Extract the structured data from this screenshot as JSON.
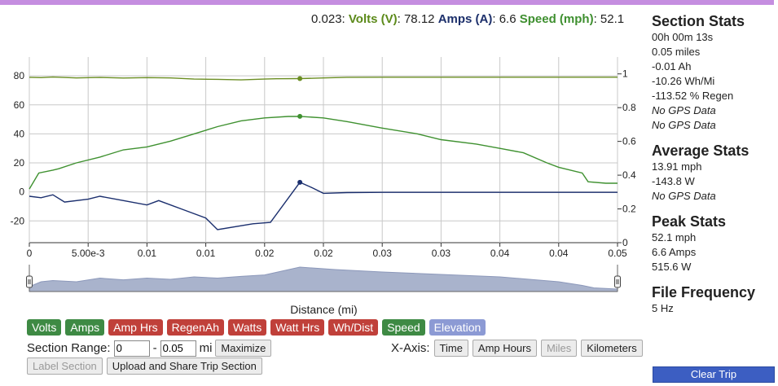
{
  "readout": {
    "x_value": "0.023:",
    "volts_label": "Volts (V)",
    "volts_sep": ":",
    "volts_value": "78.12",
    "amps_label": "Amps (A)",
    "amps_sep": ":",
    "amps_value": "6.6",
    "speed_label": "Speed (mph)",
    "speed_sep": ":",
    "speed_value": "52.1"
  },
  "colors": {
    "volts": "#6b8e23",
    "speed": "#3f9130",
    "amps": "#1b2f6e",
    "elevation": "#8c98ba"
  },
  "chart_data": {
    "type": "line",
    "xlabel": "Distance (mi)",
    "x_tick_labels": [
      "0",
      "5.00e-3",
      "0.01",
      "0.01",
      "0.02",
      "0.02",
      "0.03",
      "0.03",
      "0.04",
      "0.04",
      "0.05",
      "0.05"
    ],
    "xlim": [
      0,
      0.05
    ],
    "y_left_ticks": [
      "80",
      "60",
      "40",
      "20",
      "0",
      "-20"
    ],
    "ylim_left": [
      -35,
      93
    ],
    "y_right_ticks": [
      "1",
      "0.8",
      "0.6",
      "0.4",
      "0.2",
      "0"
    ],
    "ylim_right": [
      0,
      1.1
    ],
    "grid": true,
    "highlight_x": 0.023,
    "series": [
      {
        "name": "Volts (V)",
        "axis": "left",
        "x": [
          0,
          0.001,
          0.002,
          0.004,
          0.006,
          0.008,
          0.01,
          0.012,
          0.014,
          0.016,
          0.018,
          0.02,
          0.021,
          0.023,
          0.025,
          0.027,
          0.03,
          0.035,
          0.04,
          0.045,
          0.05
        ],
        "y": [
          79.0,
          78.8,
          79.2,
          78.6,
          78.9,
          78.5,
          78.8,
          78.6,
          77.8,
          77.6,
          77.2,
          77.8,
          78.0,
          78.12,
          78.6,
          79.0,
          79.1,
          79.1,
          79.1,
          79.1,
          79.1
        ]
      },
      {
        "name": "Speed (mph)",
        "axis": "left",
        "x": [
          0,
          0.0008,
          0.002,
          0.0025,
          0.004,
          0.006,
          0.008,
          0.01,
          0.012,
          0.014,
          0.016,
          0.018,
          0.02,
          0.022,
          0.023,
          0.025,
          0.027,
          0.03,
          0.033,
          0.035,
          0.038,
          0.04,
          0.042,
          0.044,
          0.045,
          0.047,
          0.0475,
          0.049,
          0.05
        ],
        "y": [
          2,
          13,
          15,
          16,
          20,
          24,
          29,
          31,
          35,
          40,
          45,
          49,
          51,
          52,
          52.1,
          51,
          48.5,
          44,
          40,
          36,
          33,
          30,
          27,
          20,
          17,
          13,
          7,
          6,
          6
        ]
      },
      {
        "name": "Amps (A)",
        "axis": "left",
        "x": [
          0,
          0.001,
          0.002,
          0.003,
          0.005,
          0.006,
          0.008,
          0.01,
          0.011,
          0.013,
          0.015,
          0.016,
          0.019,
          0.0205,
          0.023,
          0.024,
          0.025,
          0.027,
          0.03,
          0.035,
          0.04,
          0.045,
          0.05
        ],
        "y": [
          -3,
          -4,
          -2,
          -7,
          -5,
          -3,
          -6,
          -9,
          -6,
          -12,
          -18,
          -26,
          -22,
          -21,
          6.6,
          3,
          -1,
          -0.5,
          -0.3,
          -0.3,
          -0.3,
          -0.3,
          -0.3
        ]
      }
    ]
  },
  "elevation": {
    "name": "Elevation",
    "x": [
      0,
      0.001,
      0.002,
      0.004,
      0.006,
      0.008,
      0.01,
      0.012,
      0.014,
      0.016,
      0.018,
      0.02,
      0.023,
      0.026,
      0.03,
      0.035,
      0.04,
      0.045,
      0.047,
      0.048,
      0.05
    ],
    "y": [
      0.2,
      0.4,
      0.45,
      0.4,
      0.55,
      0.48,
      0.55,
      0.5,
      0.6,
      0.55,
      0.62,
      0.68,
      1.0,
      0.9,
      0.8,
      0.7,
      0.6,
      0.4,
      0.25,
      0.15,
      0.1
    ]
  },
  "series_buttons": [
    {
      "label": "Volts",
      "style": "green"
    },
    {
      "label": "Amps",
      "style": "green"
    },
    {
      "label": "Amp Hrs",
      "style": "red"
    },
    {
      "label": "RegenAh",
      "style": "red"
    },
    {
      "label": "Watts",
      "style": "red"
    },
    {
      "label": "Watt Hrs",
      "style": "red"
    },
    {
      "label": "Wh/Dist",
      "style": "red"
    },
    {
      "label": "Speed",
      "style": "green"
    },
    {
      "label": "Elevation",
      "style": "blue"
    }
  ],
  "section_range": {
    "label": "Section Range:",
    "start": "0",
    "separator": "-",
    "end": "0.05",
    "unit": "mi",
    "maximize_label": "Maximize"
  },
  "xaxis_controls": {
    "label": "X-Axis:",
    "buttons": [
      {
        "label": "Time",
        "enabled": true
      },
      {
        "label": "Amp Hours",
        "enabled": true
      },
      {
        "label": "Miles",
        "enabled": false
      },
      {
        "label": "Kilometers",
        "enabled": true
      }
    ]
  },
  "actions": {
    "label_section": "Label Section",
    "upload": "Upload and Share Trip Section"
  },
  "stats": {
    "section": {
      "title": "Section Stats",
      "lines": [
        {
          "text": "00h 00m 13s",
          "italic": false
        },
        {
          "text": "0.05 miles",
          "italic": false
        },
        {
          "text": "-0.01 Ah",
          "italic": false
        },
        {
          "text": "-10.26 Wh/Mi",
          "italic": false
        },
        {
          "text": "-113.52 % Regen",
          "italic": false
        },
        {
          "text": "No GPS Data",
          "italic": true
        },
        {
          "text": "No GPS Data",
          "italic": true
        }
      ]
    },
    "average": {
      "title": "Average Stats",
      "lines": [
        {
          "text": "13.91 mph",
          "italic": false
        },
        {
          "text": "-143.8 W",
          "italic": false
        },
        {
          "text": "No GPS Data",
          "italic": true
        }
      ]
    },
    "peak": {
      "title": "Peak Stats",
      "lines": [
        {
          "text": "52.1 mph",
          "italic": false
        },
        {
          "text": "6.6 Amps",
          "italic": false
        },
        {
          "text": "515.6 W",
          "italic": false
        }
      ]
    },
    "frequency": {
      "title": "File Frequency",
      "lines": [
        {
          "text": "5 Hz",
          "italic": false
        }
      ]
    }
  },
  "clear_trip": "Clear Trip"
}
